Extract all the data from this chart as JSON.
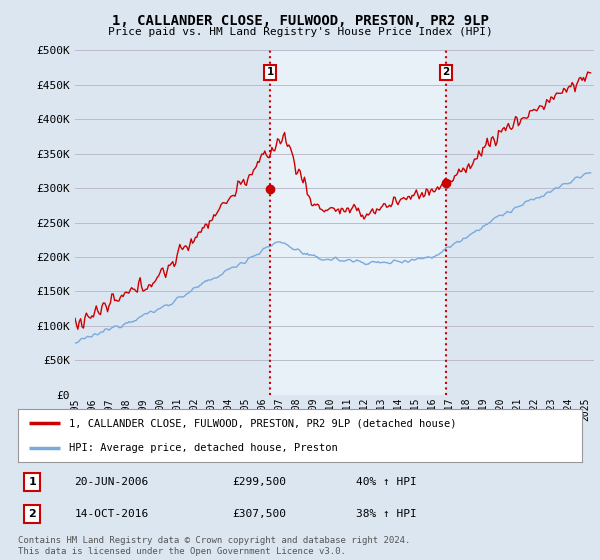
{
  "title": "1, CALLANDER CLOSE, FULWOOD, PRESTON, PR2 9LP",
  "subtitle": "Price paid vs. HM Land Registry's House Price Index (HPI)",
  "ylabel_ticks": [
    "£0",
    "£50K",
    "£100K",
    "£150K",
    "£200K",
    "£250K",
    "£300K",
    "£350K",
    "£400K",
    "£450K",
    "£500K"
  ],
  "ylim": [
    0,
    500000
  ],
  "xlim_start": 1995.0,
  "xlim_end": 2025.5,
  "sale1_x": 2006.47,
  "sale1_y": 299500,
  "sale1_label": "1",
  "sale2_x": 2016.79,
  "sale2_y": 307500,
  "sale2_label": "2",
  "sale1_date": "20-JUN-2006",
  "sale1_price": "£299,500",
  "sale1_hpi": "40% ↑ HPI",
  "sale2_date": "14-OCT-2016",
  "sale2_price": "£307,500",
  "sale2_hpi": "38% ↑ HPI",
  "legend_line1": "1, CALLANDER CLOSE, FULWOOD, PRESTON, PR2 9LP (detached house)",
  "legend_line2": "HPI: Average price, detached house, Preston",
  "footer": "Contains HM Land Registry data © Crown copyright and database right 2024.\nThis data is licensed under the Open Government Licence v3.0.",
  "line_color_red": "#cc0000",
  "line_color_blue": "#7aaadd",
  "bg_color": "#dce6f1",
  "shade_color": "#e8f0f8",
  "grid_color": "#bbbbcc",
  "vline_color": "#cc0000",
  "marker_box_color": "#cc0000"
}
